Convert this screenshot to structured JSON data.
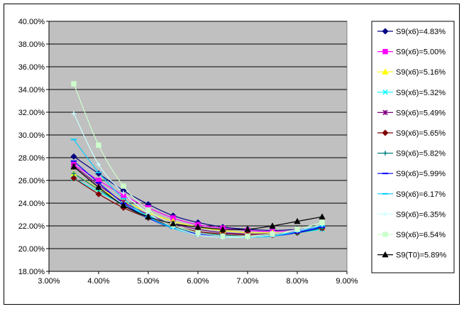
{
  "chart_data": {
    "type": "line",
    "title": "",
    "xlabel": "",
    "ylabel": "",
    "xlim": [
      0.03,
      0.09
    ],
    "ylim": [
      0.18,
      0.4
    ],
    "x_ticks": [
      "3.00%",
      "4.00%",
      "5.00%",
      "6.00%",
      "7.00%",
      "8.00%",
      "9.00%"
    ],
    "y_ticks": [
      "18.00%",
      "20.00%",
      "22.00%",
      "24.00%",
      "26.00%",
      "28.00%",
      "30.00%",
      "32.00%",
      "34.00%",
      "36.00%",
      "38.00%",
      "40.00%"
    ],
    "grid": true,
    "plot_background": "#c0c0c0",
    "legend_position": "right",
    "x": [
      0.035,
      0.04,
      0.045,
      0.05,
      0.055,
      0.06,
      0.065,
      0.07,
      0.075,
      0.08,
      0.085
    ],
    "series": [
      {
        "name": "S9(x6)=4.83%",
        "color": "#000080",
        "marker": "diamond",
        "values": [
          0.281,
          0.266,
          0.251,
          0.239,
          0.229,
          0.223,
          0.219,
          0.217,
          0.216,
          0.217,
          0.219
        ]
      },
      {
        "name": "S9(x6)=5.00%",
        "color": "#ff00ff",
        "marker": "square",
        "values": [
          0.274,
          0.26,
          0.247,
          0.236,
          0.227,
          0.221,
          0.218,
          0.216,
          0.215,
          0.216,
          0.218
        ]
      },
      {
        "name": "S9(x6)=5.16%",
        "color": "#ffff00",
        "marker": "triangle",
        "values": [
          0.266,
          0.253,
          0.242,
          0.232,
          0.224,
          0.219,
          0.216,
          0.214,
          0.214,
          0.215,
          0.218
        ]
      },
      {
        "name": "S9(x6)=5.32%",
        "color": "#00ffff",
        "marker": "x",
        "values": [
          0.262,
          0.25,
          0.239,
          0.229,
          0.222,
          0.217,
          0.214,
          0.213,
          0.213,
          0.214,
          0.217
        ]
      },
      {
        "name": "S9(x6)=5.49%",
        "color": "#800080",
        "marker": "star",
        "values": [
          0.273,
          0.256,
          0.241,
          0.23,
          0.222,
          0.217,
          0.214,
          0.213,
          0.213,
          0.215,
          0.218
        ]
      },
      {
        "name": "S9(x6)=5.65%",
        "color": "#800000",
        "marker": "diamond",
        "values": [
          0.262,
          0.248,
          0.236,
          0.227,
          0.22,
          0.215,
          0.213,
          0.212,
          0.212,
          0.214,
          0.218
        ]
      },
      {
        "name": "S9(x6)=5.82%",
        "color": "#008080",
        "marker": "plus",
        "values": [
          0.266,
          0.252,
          0.238,
          0.227,
          0.219,
          0.214,
          0.212,
          0.211,
          0.212,
          0.214,
          0.218
        ]
      },
      {
        "name": "S9(x6)=5.99%",
        "color": "#0000ff",
        "marker": "dash",
        "values": [
          0.277,
          0.258,
          0.24,
          0.227,
          0.218,
          0.213,
          0.211,
          0.21,
          0.211,
          0.214,
          0.219
        ]
      },
      {
        "name": "S9(x6)=6.17%",
        "color": "#00ccff",
        "marker": "dash",
        "values": [
          0.296,
          0.267,
          0.244,
          0.228,
          0.218,
          0.212,
          0.21,
          0.21,
          0.211,
          0.215,
          0.22
        ]
      },
      {
        "name": "S9(x6)=6.35%",
        "color": "#ccffff",
        "marker": "plus",
        "values": [
          0.319,
          0.274,
          0.249,
          0.231,
          0.219,
          0.212,
          0.21,
          0.21,
          0.212,
          0.216,
          0.221
        ]
      },
      {
        "name": "S9(x6)=6.54%",
        "color": "#ccffcc",
        "marker": "square",
        "values": [
          0.345,
          0.291,
          0.255,
          0.234,
          0.221,
          0.214,
          0.211,
          0.211,
          0.213,
          0.217,
          0.223
        ]
      },
      {
        "name": "S9(T0)=5.89%",
        "color": "#000000",
        "marker": "triangle",
        "values": [
          0.272,
          0.254,
          0.238,
          0.228,
          0.222,
          0.219,
          0.217,
          0.217,
          0.22,
          0.224,
          0.228
        ]
      }
    ]
  }
}
